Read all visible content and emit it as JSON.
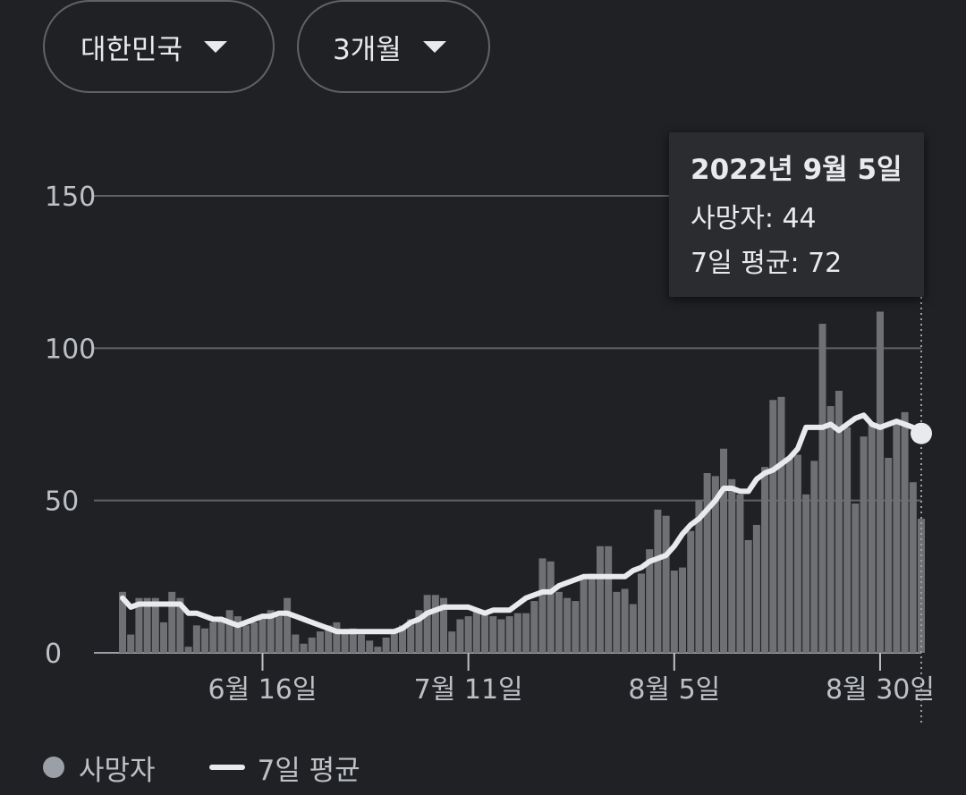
{
  "filters": {
    "country": "대한민국",
    "range": "3개월"
  },
  "tooltip": {
    "date": "2022년 9월 5일",
    "deaths_label": "사망자",
    "deaths_value": "44",
    "avg_label": "7일 평균",
    "avg_value": "72"
  },
  "legend": {
    "deaths": "사망자",
    "avg": "7일 평균"
  },
  "colors": {
    "bar": "#6e7074",
    "line": "#e8eaed",
    "grid": "#5f6368",
    "background": "#202124"
  },
  "chart_data": {
    "type": "bar",
    "title": "",
    "xlabel": "",
    "ylabel": "",
    "ylim": [
      0,
      150
    ],
    "yticks": [
      "0",
      "50",
      "100",
      "150"
    ],
    "xtick_labels": [
      {
        "label": "6월 16일",
        "index": 17
      },
      {
        "label": "7월 11일",
        "index": 42
      },
      {
        "label": "8월 5일",
        "index": 67
      },
      {
        "label": "8월 30일",
        "index": 92
      }
    ],
    "start_date": "2022-05-31",
    "end_date": "2022-09-05",
    "series": [
      {
        "name": "사망자",
        "type": "bar",
        "values": [
          20,
          6,
          18,
          18,
          18,
          10,
          20,
          18,
          2,
          9,
          8,
          10,
          11,
          14,
          12,
          9,
          10,
          12,
          14,
          12,
          18,
          6,
          3,
          5,
          7,
          9,
          10,
          7,
          8,
          6,
          4,
          2,
          5,
          7,
          9,
          11,
          14,
          19,
          19,
          18,
          7,
          11,
          12,
          14,
          13,
          12,
          11,
          12,
          13,
          13,
          17,
          31,
          30,
          20,
          18,
          17,
          25,
          26,
          35,
          35,
          20,
          21,
          16,
          26,
          34,
          47,
          45,
          27,
          28,
          40,
          50,
          59,
          58,
          67,
          57,
          52,
          37,
          42,
          61,
          83,
          84,
          64,
          65,
          52,
          63,
          108,
          81,
          86,
          74,
          49,
          71,
          75,
          112,
          64,
          76,
          79,
          56,
          44
        ]
      },
      {
        "name": "7일 평균",
        "type": "line",
        "values": [
          18,
          15,
          16,
          16,
          16,
          16,
          16,
          16,
          13,
          13,
          12,
          11,
          11,
          10,
          9,
          10,
          11,
          12,
          12,
          13,
          13,
          12,
          11,
          10,
          9,
          8,
          7,
          7,
          7,
          7,
          7,
          7,
          7,
          7,
          8,
          10,
          11,
          13,
          14,
          15,
          15,
          15,
          15,
          14,
          13,
          14,
          14,
          14,
          16,
          18,
          19,
          20,
          20,
          22,
          23,
          24,
          25,
          25,
          25,
          25,
          25,
          25,
          27,
          28,
          30,
          31,
          32,
          35,
          39,
          42,
          44,
          47,
          50,
          54,
          54,
          53,
          53,
          57,
          59,
          60,
          62,
          64,
          67,
          74,
          74,
          74,
          75,
          73,
          75,
          77,
          78,
          75,
          74,
          75,
          76,
          75,
          74,
          72
        ]
      }
    ],
    "highlight_index": 97
  }
}
